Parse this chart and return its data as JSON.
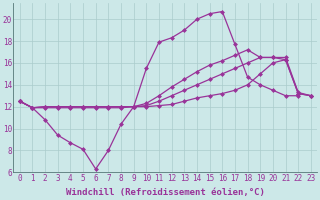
{
  "background_color": "#cce8e8",
  "grid_color": "#aacccc",
  "line_color": "#993399",
  "markersize": 2.5,
  "linewidth": 0.9,
  "xlabel": "Windchill (Refroidissement éolien,°C)",
  "xlabel_fontsize": 6.5,
  "tick_fontsize": 5.5,
  "xlim": [
    -0.5,
    23.5
  ],
  "ylim": [
    6,
    21.5
  ],
  "yticks": [
    6,
    8,
    10,
    12,
    14,
    16,
    18,
    20
  ],
  "xticks": [
    0,
    1,
    2,
    3,
    4,
    5,
    6,
    7,
    8,
    9,
    10,
    11,
    12,
    13,
    14,
    15,
    16,
    17,
    18,
    19,
    20,
    21,
    22,
    23
  ],
  "series": [
    {
      "x": [
        0,
        1,
        2,
        3,
        4,
        5,
        6,
        7,
        8,
        9,
        10,
        11,
        12,
        13,
        14,
        15,
        16,
        17,
        18,
        19,
        20,
        21,
        22,
        23
      ],
      "y": [
        12.5,
        11.9,
        10.8,
        9.4,
        8.7,
        8.1,
        6.3,
        8.0,
        10.4,
        12.0,
        15.5,
        17.9,
        18.3,
        19.0,
        20.0,
        20.5,
        20.7,
        17.7,
        14.7,
        14.0,
        13.5,
        13.0,
        13.0,
        null
      ]
    },
    {
      "x": [
        0,
        1,
        2,
        3,
        4,
        5,
        6,
        7,
        8,
        9,
        10,
        11,
        12,
        13,
        14,
        15,
        16,
        17,
        18,
        19,
        20,
        21,
        22,
        23
      ],
      "y": [
        12.5,
        11.9,
        12.0,
        12.0,
        12.0,
        12.0,
        12.0,
        12.0,
        12.0,
        12.0,
        12.3,
        13.0,
        13.8,
        14.5,
        15.2,
        15.8,
        16.2,
        16.7,
        17.2,
        16.5,
        16.5,
        16.5,
        13.3,
        13.0
      ]
    },
    {
      "x": [
        0,
        1,
        2,
        3,
        4,
        5,
        6,
        7,
        8,
        9,
        10,
        11,
        12,
        13,
        14,
        15,
        16,
        17,
        18,
        19,
        20,
        21,
        22,
        23
      ],
      "y": [
        12.5,
        11.9,
        12.0,
        12.0,
        12.0,
        12.0,
        12.0,
        12.0,
        12.0,
        12.0,
        12.1,
        12.5,
        13.0,
        13.5,
        14.0,
        14.5,
        15.0,
        15.5,
        16.0,
        16.5,
        16.5,
        16.3,
        13.2,
        13.0
      ]
    },
    {
      "x": [
        0,
        1,
        2,
        3,
        4,
        5,
        6,
        7,
        8,
        9,
        10,
        11,
        12,
        13,
        14,
        15,
        16,
        17,
        18,
        19,
        20,
        21,
        22,
        23
      ],
      "y": [
        12.5,
        11.9,
        11.9,
        11.9,
        11.9,
        11.9,
        11.9,
        11.9,
        11.9,
        12.0,
        12.0,
        12.1,
        12.2,
        12.5,
        12.8,
        13.0,
        13.2,
        13.5,
        14.0,
        15.0,
        16.0,
        16.3,
        13.2,
        13.0
      ]
    }
  ]
}
